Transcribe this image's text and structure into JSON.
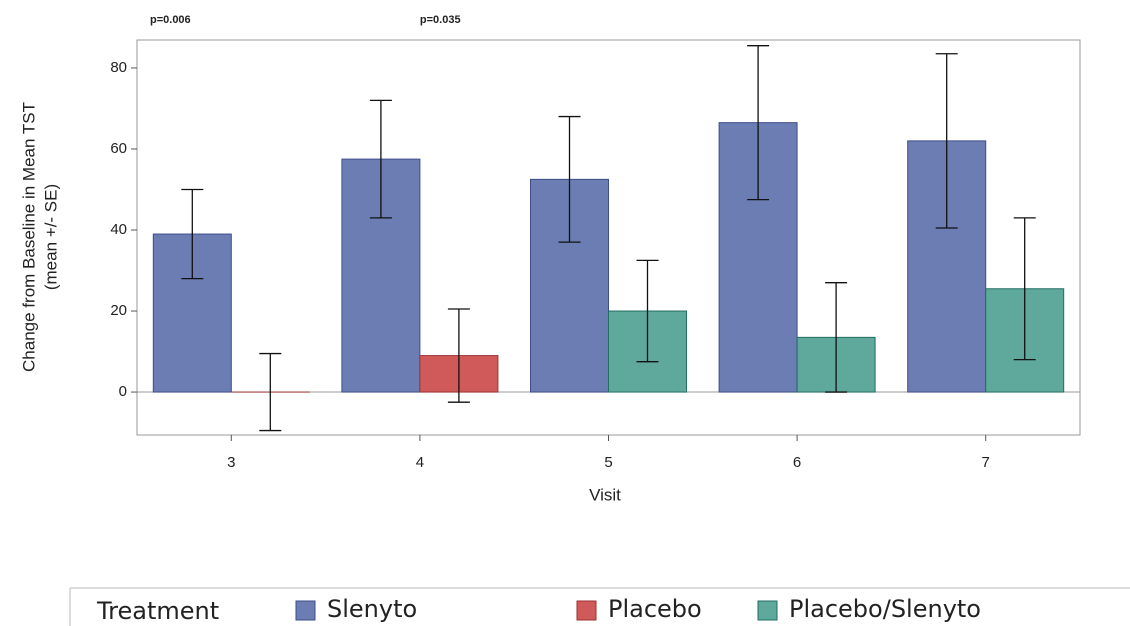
{
  "chart_data": {
    "type": "bar",
    "x_label": "Visit",
    "y_label": [
      "Change from Baseline in Mean TST",
      "(mean +/- SE)"
    ],
    "legend_title": "Treatment",
    "categories": [
      "3",
      "4",
      "5",
      "6",
      "7"
    ],
    "series": [
      {
        "name": "Slenyto",
        "color": "#6b7db3",
        "stroke": "#3e4d8c",
        "values": [
          39,
          57.5,
          52.5,
          66.5,
          62
        ],
        "errors": [
          11,
          14.5,
          15.5,
          19,
          21.5
        ]
      },
      {
        "name": "Placebo",
        "color": "#d05a5a",
        "stroke": "#9c3232",
        "values": [
          0,
          9,
          null,
          null,
          null
        ],
        "errors": [
          9.5,
          11.5,
          null,
          null,
          null
        ]
      },
      {
        "name": "Placebo/Slenyto",
        "color": "#5fa89c",
        "stroke": "#226e62",
        "values": [
          null,
          null,
          20,
          13.5,
          25.5
        ],
        "errors": [
          null,
          null,
          12.5,
          13.5,
          17.5
        ]
      }
    ],
    "annotations": [
      {
        "text": "p=0.006",
        "category": 0
      },
      {
        "text": "p=0.035",
        "category": 1
      }
    ],
    "ylim": [
      -10.6,
      86.9
    ],
    "yticks": [
      0,
      20,
      40,
      60,
      80
    ],
    "grid": false
  }
}
